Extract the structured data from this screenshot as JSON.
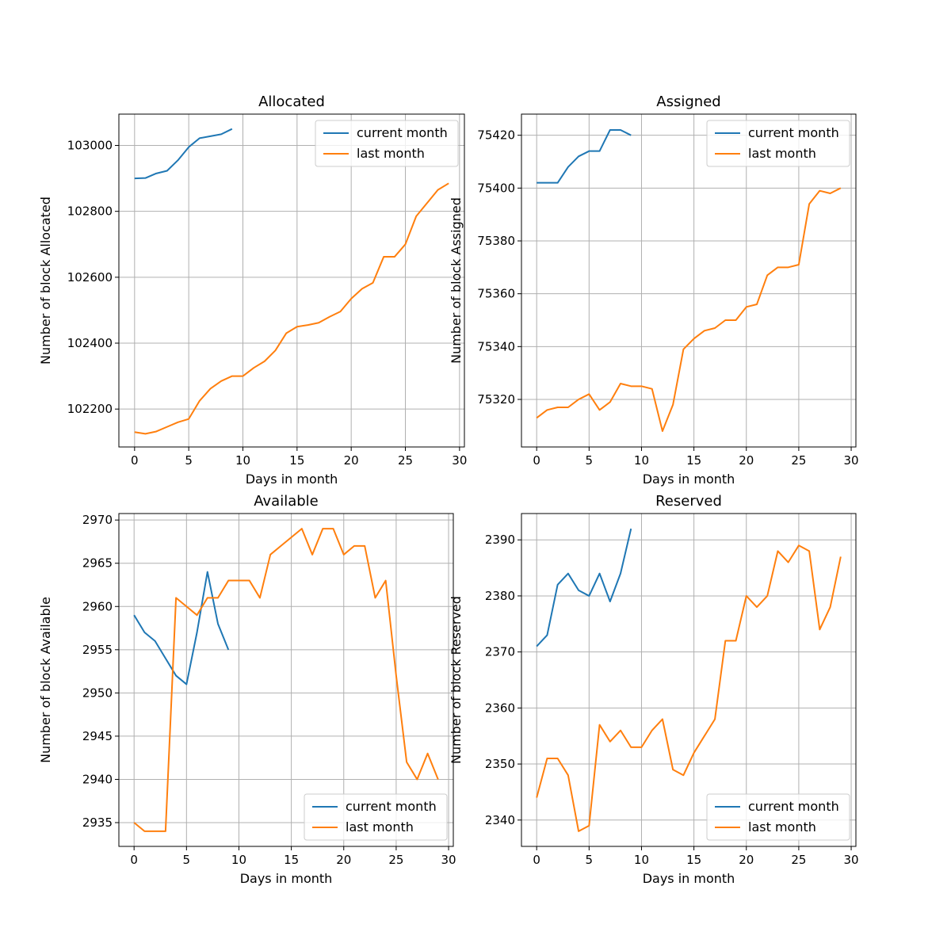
{
  "chart_data": [
    {
      "type": "line",
      "title": "Allocated",
      "xlabel": "Days in month",
      "ylabel": "Number of block Allocated",
      "xlim": [
        -1.45,
        30.45
      ],
      "ylim": [
        102085,
        103095
      ],
      "xticks": [
        0,
        5,
        10,
        15,
        20,
        25,
        30
      ],
      "yticks": [
        102200,
        102400,
        102600,
        102800,
        103000
      ],
      "grid": true,
      "legend": "top-right",
      "series": [
        {
          "name": "current month",
          "color": "#1f77b4",
          "x": [
            0,
            1,
            2,
            3,
            4,
            5,
            6,
            7,
            8,
            9
          ],
          "y": [
            102900,
            102901,
            102915,
            102923,
            102955,
            102995,
            103022,
            103028,
            103034,
            103050
          ]
        },
        {
          "name": "last month",
          "color": "#ff7f0e",
          "x": [
            0,
            1,
            2,
            3,
            4,
            5,
            6,
            7,
            8,
            9,
            10,
            11,
            12,
            13,
            14,
            15,
            16,
            17,
            18,
            19,
            20,
            21,
            22,
            23,
            24,
            25,
            26,
            27,
            28,
            29
          ],
          "y": [
            102130,
            102125,
            102132,
            102146,
            102160,
            102170,
            102225,
            102262,
            102285,
            102300,
            102300,
            102325,
            102345,
            102378,
            102430,
            102450,
            102455,
            102462,
            102480,
            102496,
            102535,
            102565,
            102583,
            102662,
            102662,
            102700,
            102785,
            102825,
            102865,
            102885
          ]
        }
      ]
    },
    {
      "type": "line",
      "title": "Assigned",
      "xlabel": "Days in month",
      "ylabel": "Number of block Assigned",
      "xlim": [
        -1.45,
        30.45
      ],
      "ylim": [
        75302,
        75428
      ],
      "xticks": [
        0,
        5,
        10,
        15,
        20,
        25,
        30
      ],
      "yticks": [
        75320,
        75340,
        75360,
        75380,
        75400,
        75420
      ],
      "grid": true,
      "legend": "top-right",
      "series": [
        {
          "name": "current month",
          "color": "#1f77b4",
          "x": [
            0,
            1,
            2,
            3,
            4,
            5,
            6,
            7,
            8,
            9
          ],
          "y": [
            75402,
            75402,
            75402,
            75408,
            75412,
            75414,
            75414,
            75422,
            75422,
            75420
          ]
        },
        {
          "name": "last month",
          "color": "#ff7f0e",
          "x": [
            0,
            1,
            2,
            3,
            4,
            5,
            6,
            7,
            8,
            9,
            10,
            11,
            12,
            13,
            14,
            15,
            16,
            17,
            18,
            19,
            20,
            21,
            22,
            23,
            24,
            25,
            26,
            27,
            28,
            29
          ],
          "y": [
            75313,
            75316,
            75317,
            75317,
            75320,
            75322,
            75316,
            75319,
            75326,
            75325,
            75325,
            75324,
            75308,
            75318,
            75339,
            75343,
            75346,
            75347,
            75350,
            75350,
            75355,
            75356,
            75367,
            75370,
            75370,
            75371,
            75394,
            75399,
            75398,
            75400
          ]
        }
      ]
    },
    {
      "type": "line",
      "title": "Available",
      "xlabel": "Days in month",
      "ylabel": "Number of block Available",
      "xlim": [
        -1.45,
        30.45
      ],
      "ylim": [
        2932.25,
        2970.75
      ],
      "xticks": [
        0,
        5,
        10,
        15,
        20,
        25,
        30
      ],
      "yticks": [
        2935,
        2940,
        2945,
        2950,
        2955,
        2960,
        2965,
        2970
      ],
      "grid": true,
      "legend": "bottom-right",
      "series": [
        {
          "name": "current month",
          "color": "#1f77b4",
          "x": [
            0,
            1,
            2,
            3,
            4,
            5,
            6,
            7,
            8,
            9
          ],
          "y": [
            2959,
            2957,
            2956,
            2954,
            2952,
            2951,
            2957,
            2964,
            2958,
            2955
          ]
        },
        {
          "name": "last month",
          "color": "#ff7f0e",
          "x": [
            0,
            1,
            2,
            3,
            4,
            5,
            6,
            7,
            8,
            9,
            10,
            11,
            12,
            13,
            14,
            15,
            16,
            17,
            18,
            19,
            20,
            21,
            22,
            23,
            24,
            25,
            26,
            27,
            28,
            29
          ],
          "y": [
            2935,
            2934,
            2934,
            2934,
            2961,
            2960,
            2959,
            2961,
            2961,
            2963,
            2963,
            2963,
            2961,
            2966,
            2967,
            2968,
            2969,
            2966,
            2969,
            2969,
            2966,
            2967,
            2967,
            2961,
            2963,
            2952,
            2942,
            2940,
            2943,
            2940
          ]
        }
      ]
    },
    {
      "type": "line",
      "title": "Reserved",
      "xlabel": "Days in month",
      "ylabel": "Number of block Reserved",
      "xlim": [
        -1.45,
        30.45
      ],
      "ylim": [
        2335.3,
        2394.7
      ],
      "xticks": [
        0,
        5,
        10,
        15,
        20,
        25,
        30
      ],
      "yticks": [
        2340,
        2350,
        2360,
        2370,
        2380,
        2390
      ],
      "grid": true,
      "legend": "bottom-right",
      "series": [
        {
          "name": "current month",
          "color": "#1f77b4",
          "x": [
            0,
            1,
            2,
            3,
            4,
            5,
            6,
            7,
            8,
            9
          ],
          "y": [
            2371,
            2373,
            2382,
            2384,
            2381,
            2380,
            2384,
            2379,
            2384,
            2392
          ]
        },
        {
          "name": "last month",
          "color": "#ff7f0e",
          "x": [
            0,
            1,
            2,
            3,
            4,
            5,
            6,
            7,
            8,
            9,
            10,
            11,
            12,
            13,
            14,
            15,
            16,
            17,
            18,
            19,
            20,
            21,
            22,
            23,
            24,
            25,
            26,
            27,
            28,
            29
          ],
          "y": [
            2344,
            2351,
            2351,
            2348,
            2338,
            2339,
            2357,
            2354,
            2356,
            2353,
            2353,
            2356,
            2358,
            2349,
            2348,
            2352,
            2355,
            2358,
            2372,
            2372,
            2380,
            2378,
            2380,
            2388,
            2386,
            2389,
            2388,
            2374,
            2378,
            2387
          ]
        }
      ]
    }
  ]
}
